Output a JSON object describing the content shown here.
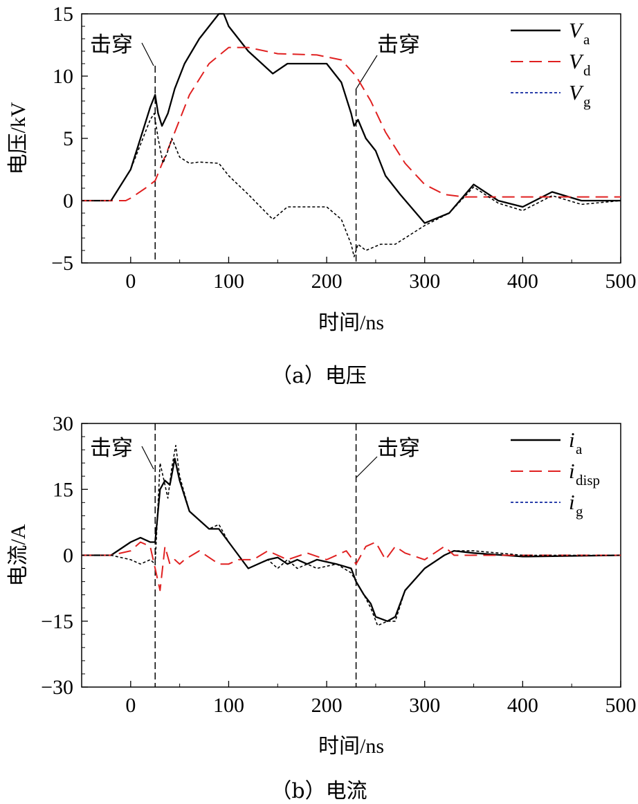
{
  "chart_data": [
    {
      "type": "line",
      "caption": "（a）电压",
      "xlabel": "时间/ns",
      "ylabel": "电压/kV",
      "xlim": [
        -50,
        500
      ],
      "ylim": [
        -5,
        15
      ],
      "xticks": [
        0,
        100,
        200,
        300,
        400,
        500
      ],
      "yticks": [
        -5,
        0,
        5,
        10,
        15
      ],
      "legend_position": "top-right",
      "annotations": [
        {
          "text": "击穿",
          "x": 25
        },
        {
          "text": "击穿",
          "x": 230
        }
      ],
      "series": [
        {
          "name": "V",
          "sub": "a",
          "style": "solid",
          "color": "#000000",
          "x": [
            -50,
            -20,
            0,
            10,
            20,
            25,
            28,
            32,
            38,
            45,
            55,
            70,
            90,
            95,
            100,
            120,
            145,
            160,
            200,
            215,
            225,
            228,
            232,
            240,
            250,
            260,
            275,
            300,
            325,
            350,
            375,
            400,
            430,
            460,
            500
          ],
          "y": [
            0,
            0,
            2.5,
            5,
            7.5,
            8.5,
            7,
            6,
            7,
            9,
            11,
            13,
            15,
            15,
            14,
            12,
            10.2,
            11,
            11,
            9.5,
            7,
            6,
            6.5,
            5,
            4,
            2,
            0.5,
            -1.8,
            -1,
            1.3,
            0,
            -0.5,
            0.7,
            0,
            0
          ]
        },
        {
          "name": "V",
          "sub": "d",
          "style": "dashed",
          "color": "#e02020",
          "x": [
            -50,
            -5,
            0,
            15,
            25,
            40,
            60,
            80,
            100,
            120,
            150,
            190,
            215,
            230,
            245,
            260,
            280,
            300,
            320,
            340,
            500
          ],
          "y": [
            0,
            0,
            0.2,
            1,
            1.6,
            4.5,
            8.5,
            11,
            12.3,
            12.3,
            11.8,
            11.7,
            11.3,
            10,
            8,
            5.5,
            3,
            1.3,
            0.5,
            0.3,
            0.3
          ]
        },
        {
          "name": "V",
          "sub": "g",
          "style": "dotted",
          "color": "#000000",
          "x": [
            -50,
            -20,
            0,
            10,
            20,
            24,
            28,
            33,
            38,
            42,
            50,
            60,
            70,
            90,
            100,
            120,
            145,
            160,
            200,
            215,
            225,
            228,
            232,
            240,
            255,
            270,
            300,
            325,
            350,
            375,
            400,
            430,
            460,
            500
          ],
          "y": [
            0,
            0,
            2.5,
            4.5,
            6.5,
            7,
            5,
            3,
            4,
            5,
            3.5,
            3,
            3.1,
            3,
            2,
            0.5,
            -1.5,
            -0.5,
            -0.5,
            -1.5,
            -3.5,
            -4.5,
            -3.5,
            -4,
            -3.5,
            -3.5,
            -2,
            -1,
            1.1,
            -0.2,
            -0.8,
            0.4,
            -0.3,
            0
          ]
        }
      ]
    },
    {
      "type": "line",
      "caption": "（b）电流",
      "xlabel": "时间/ns",
      "ylabel": "电流/A",
      "xlim": [
        -50,
        500
      ],
      "ylim": [
        -30,
        30
      ],
      "xticks": [
        0,
        100,
        200,
        300,
        400,
        500
      ],
      "yticks": [
        -30,
        -15,
        0,
        15,
        30
      ],
      "legend_position": "top-right",
      "annotations": [
        {
          "text": "击穿",
          "x": 25
        },
        {
          "text": "击穿",
          "x": 230
        }
      ],
      "series": [
        {
          "name": "i",
          "sub": "a",
          "style": "solid",
          "color": "#000000",
          "x": [
            -50,
            -20,
            0,
            10,
            20,
            25,
            30,
            35,
            40,
            45,
            50,
            60,
            80,
            90,
            100,
            120,
            140,
            150,
            160,
            170,
            180,
            190,
            210,
            225,
            230,
            238,
            245,
            250,
            262,
            270,
            280,
            300,
            320,
            330,
            350,
            400,
            500
          ],
          "y": [
            0,
            0,
            3,
            4,
            3,
            3,
            15,
            17,
            16,
            22,
            17,
            10,
            6,
            6,
            3,
            -3,
            -1,
            -0.5,
            -2,
            -1,
            -2,
            -1,
            -2,
            -3,
            -6,
            -9,
            -11,
            -14,
            -15,
            -14,
            -8,
            -3,
            0,
            1,
            0.5,
            -0.3,
            0
          ]
        },
        {
          "name": "i",
          "sub": "disp",
          "style": "dashed",
          "color": "#e02020",
          "x": [
            -50,
            -20,
            0,
            10,
            20,
            25,
            30,
            35,
            40,
            45,
            50,
            55,
            70,
            90,
            100,
            110,
            125,
            140,
            160,
            180,
            200,
            220,
            230,
            240,
            250,
            260,
            270,
            280,
            300,
            320,
            330,
            350,
            500
          ],
          "y": [
            0,
            0,
            1,
            3,
            2,
            -3,
            -8,
            2,
            -2,
            -1,
            -2,
            -1,
            1,
            -2,
            -2,
            -1,
            -1,
            1,
            -1,
            0.5,
            -1,
            1,
            -2,
            2,
            3,
            -1,
            2,
            0.5,
            -1,
            2,
            0,
            0,
            0
          ]
        },
        {
          "name": "i",
          "sub": "g",
          "style": "dotted",
          "color": "#000000",
          "x": [
            -50,
            -20,
            0,
            10,
            20,
            25,
            30,
            34,
            38,
            42,
            46,
            50,
            60,
            80,
            90,
            100,
            120,
            140,
            150,
            160,
            170,
            180,
            190,
            210,
            225,
            230,
            238,
            245,
            252,
            262,
            270,
            280,
            300,
            320,
            330,
            350,
            400,
            500
          ],
          "y": [
            0,
            0,
            -1,
            -2,
            -1,
            -2,
            21,
            17,
            13,
            20,
            25,
            18,
            10,
            6,
            7,
            3,
            -3,
            -1,
            -3,
            -1,
            -3,
            -2,
            -3,
            -2,
            -4,
            -6,
            -9,
            -12,
            -16,
            -15,
            -15,
            -8,
            -3,
            0,
            1,
            1,
            0,
            0
          ]
        }
      ]
    }
  ]
}
